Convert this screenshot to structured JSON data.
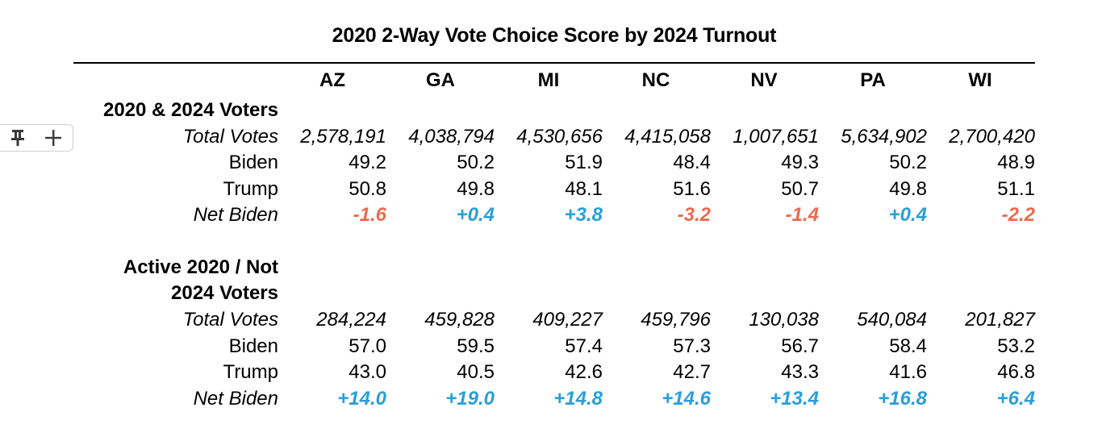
{
  "title": "2020 2-Way Vote Choice Score by 2024 Turnout",
  "columns": [
    "AZ",
    "GA",
    "MI",
    "NC",
    "NV",
    "PA",
    "WI"
  ],
  "toolbar": {
    "icons": [
      "pin-icon",
      "plus-icon"
    ]
  },
  "colors": {
    "negative": "#ec6a4e",
    "positive": "#2a9fd8"
  },
  "sections": [
    {
      "heading_line1": "2020 & 2024 Voters",
      "heading_line2": "",
      "rows": [
        {
          "label": "Total Votes",
          "values": [
            "2,578,191",
            "4,038,794",
            "4,530,656",
            "4,415,058",
            "1,007,651",
            "5,634,902",
            "2,700,420"
          ]
        },
        {
          "label": "Biden",
          "values": [
            "49.2",
            "50.2",
            "51.9",
            "48.4",
            "49.3",
            "50.2",
            "48.9"
          ]
        },
        {
          "label": "Trump",
          "values": [
            "50.8",
            "49.8",
            "48.1",
            "51.6",
            "50.7",
            "49.8",
            "51.1"
          ]
        },
        {
          "label": "Net Biden",
          "values": [
            "-1.6",
            "+0.4",
            "+3.8",
            "-3.2",
            "-1.4",
            "+0.4",
            "-2.2"
          ]
        }
      ]
    },
    {
      "heading_line1": "Active 2020 / Not",
      "heading_line2": "2024 Voters",
      "rows": [
        {
          "label": "Total Votes",
          "values": [
            "284,224",
            "459,828",
            "409,227",
            "459,796",
            "130,038",
            "540,084",
            "201,827"
          ]
        },
        {
          "label": "Biden",
          "values": [
            "57.0",
            "59.5",
            "57.4",
            "57.3",
            "56.7",
            "58.4",
            "53.2"
          ]
        },
        {
          "label": "Trump",
          "values": [
            "43.0",
            "40.5",
            "42.6",
            "42.7",
            "43.3",
            "41.6",
            "46.8"
          ]
        },
        {
          "label": "Net Biden",
          "values": [
            "+14.0",
            "+19.0",
            "+14.8",
            "+14.6",
            "+13.4",
            "+16.8",
            "+6.4"
          ]
        }
      ]
    }
  ]
}
